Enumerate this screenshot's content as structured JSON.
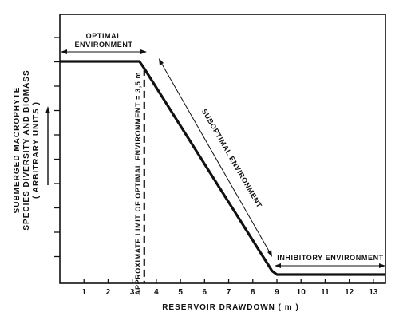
{
  "chart_data": {
    "type": "line",
    "xlabel": "RESERVOIR DRAWDOWN ( m )",
    "ylabel_lines": [
      "SUBMERGED MACROPHYTE",
      "SPECIES DIVERSITY AND BIOMASS",
      "( ARBITRARY UNITS )"
    ],
    "xlim": [
      0,
      13.5
    ],
    "ylim": [
      0,
      10
    ],
    "x_ticks": [
      1,
      2,
      3,
      4,
      5,
      6,
      7,
      8,
      9,
      10,
      11,
      12,
      13
    ],
    "x_tick_labels": [
      "1",
      "2",
      "3",
      "4",
      "5",
      "6",
      "7",
      "8",
      "9",
      "10",
      "11",
      "12",
      "13"
    ],
    "y_tick_count": 10,
    "series": [
      {
        "x": [
          0,
          3.3,
          3.5,
          8.8,
          9.0,
          13.5
        ],
        "y": [
          9.0,
          9.0,
          8.7,
          0.15,
          0.0,
          0.0
        ]
      }
    ],
    "vline": {
      "x": 3.5,
      "style": "dashed"
    },
    "annotations": {
      "optimal": [
        "OPTIMAL",
        "ENVIRONMENT"
      ],
      "suboptimal": "SUBOPTIMAL ENVIRONMENT",
      "inhibitory": "INHIBITORY ENVIRONMENT",
      "limit": "APPROXIMATE LIMIT OF OPTIMAL ENVIRONMENT = 3,5 m"
    },
    "grid": false
  }
}
